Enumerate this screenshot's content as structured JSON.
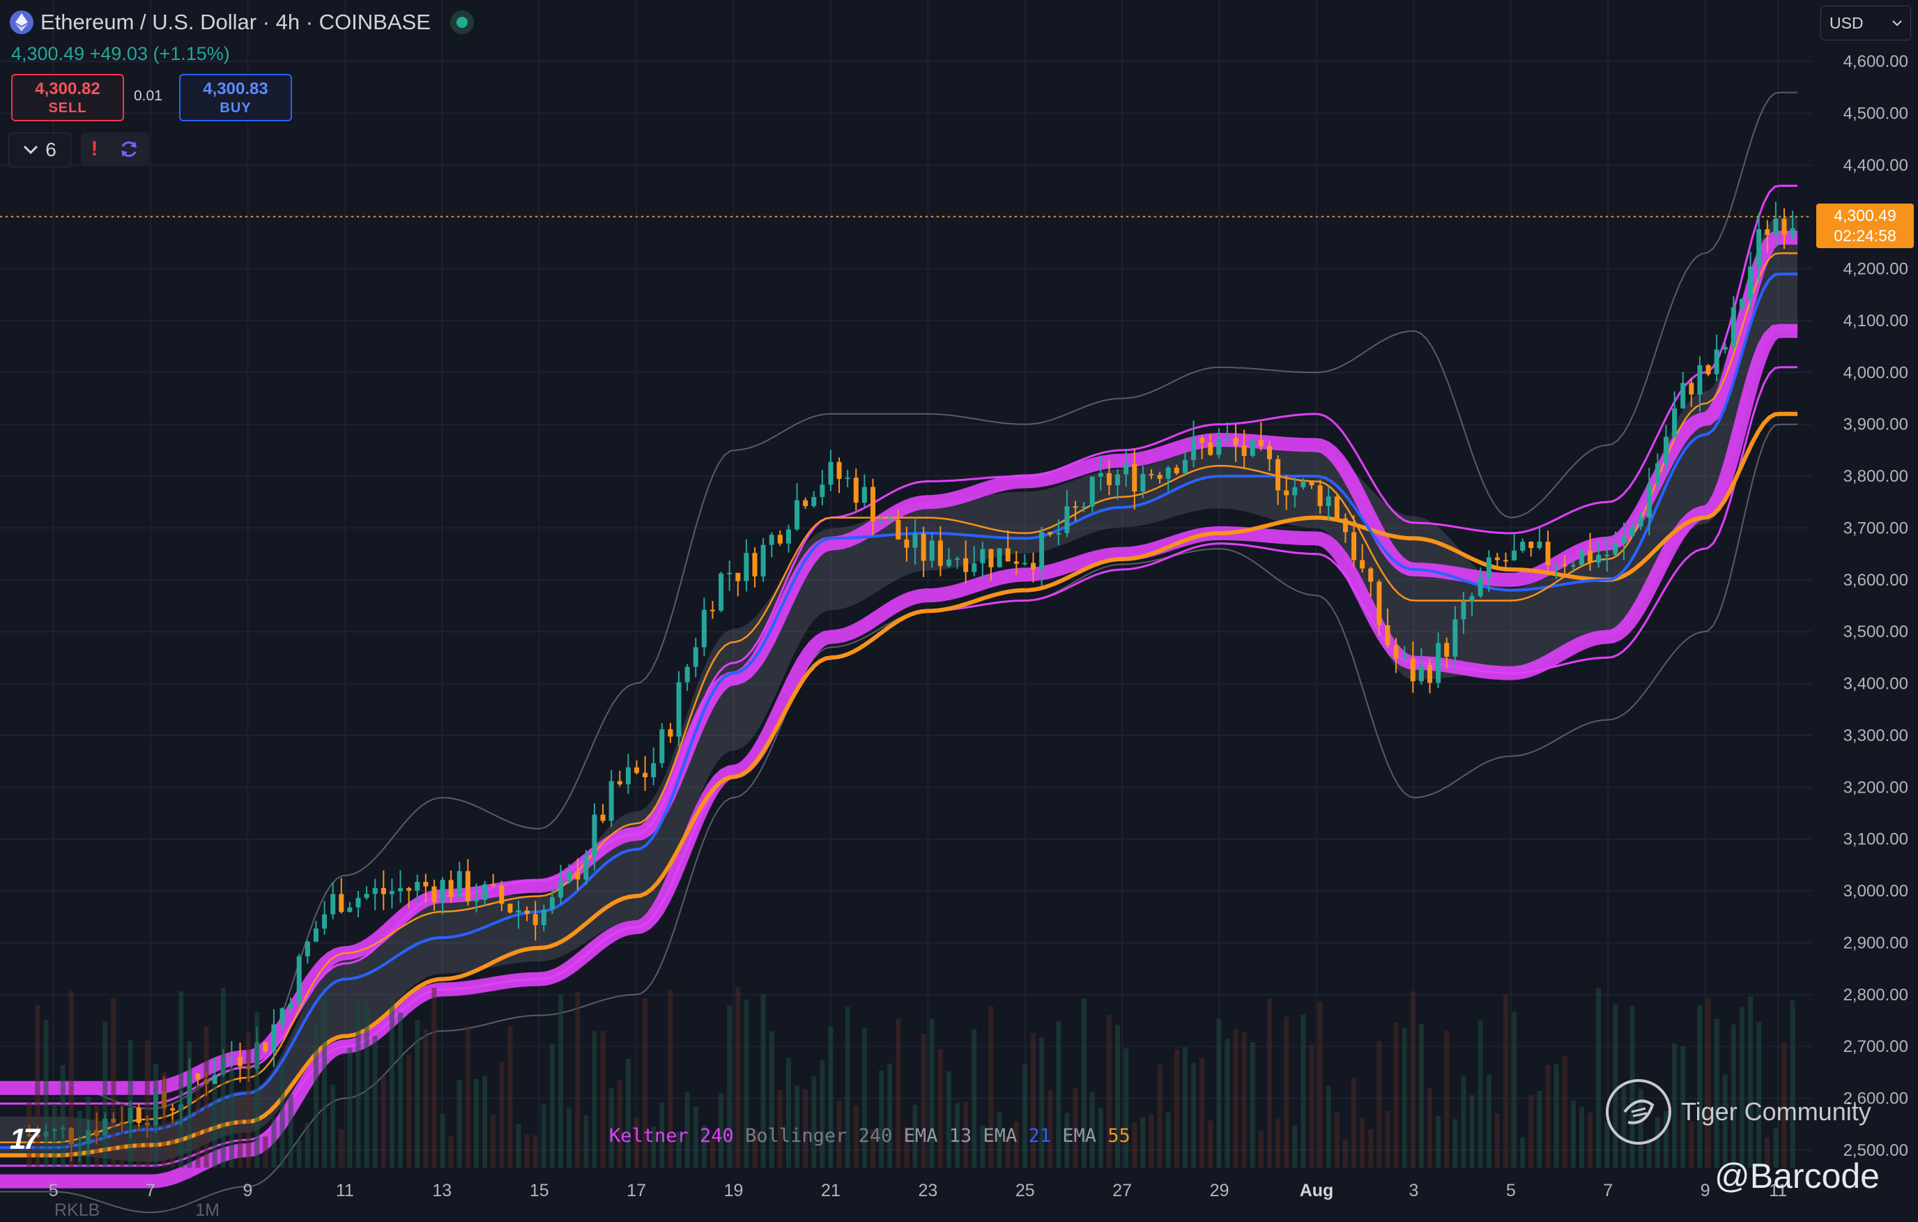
{
  "header": {
    "symbol_title": "Ethereum / U.S. Dollar · 4h · COINBASE",
    "last_price": "4,300.49",
    "change": "+49.03 (+1.15%)"
  },
  "trade_panel": {
    "sell_price": "4,300.82",
    "sell_label": "SELL",
    "spread": "0.01",
    "buy_price": "4,300.83",
    "buy_label": "BUY"
  },
  "toolbar": {
    "indicator_count": "6"
  },
  "currency_selector": "USD",
  "price_tag": {
    "price": "4,300.49",
    "countdown": "02:24:58"
  },
  "indicator_legend": [
    {
      "name": "Keltner",
      "param": "240",
      "name_color": "#e040fb",
      "param_color": "#e040fb"
    },
    {
      "name": "Bollinger",
      "param": "240",
      "name_color": "#787b86",
      "param_color": "#787b86"
    },
    {
      "name": "EMA",
      "param": "13",
      "name_color": "#9598a1",
      "param_color": "#9598a1"
    },
    {
      "name": "EMA",
      "param": "21",
      "name_color": "#9598a1",
      "param_color": "#2962ff"
    },
    {
      "name": "EMA",
      "param": "55",
      "name_color": "#9598a1",
      "param_color": "#f7931a"
    }
  ],
  "watermarks": {
    "tiger": "Tiger Community",
    "handle": "@Barcode"
  },
  "bottom_tabs": [
    "RKLB",
    "1M"
  ],
  "colors": {
    "background": "#131722",
    "grid": "#1e2230",
    "keltner": "#e040fb",
    "bollinger": "#787b86",
    "ema13": "#f7931a",
    "ema21": "#2962ff",
    "ema55": "#f7931a",
    "up_candle": "#26a69a",
    "down_candle": "#f7931a",
    "current_price": "#f7931a"
  },
  "chart_data": {
    "type": "line",
    "title": "Ethereum / U.S. Dollar · 4h · COINBASE",
    "xlabel": "",
    "ylabel": "",
    "ylim": [
      2450,
      4650
    ],
    "y_ticks": [
      "4,600.00",
      "4,500.00",
      "4,400.00",
      "4,300.00",
      "4,200.00",
      "4,100.00",
      "4,000.00",
      "3,900.00",
      "3,800.00",
      "3,700.00",
      "3,600.00",
      "3,500.00",
      "3,400.00",
      "3,300.00",
      "3,200.00",
      "3,100.00",
      "3,000.00",
      "2,900.00",
      "2,800.00",
      "2,700.00",
      "2,600.00",
      "2,500.00"
    ],
    "x_ticks": [
      "5",
      "7",
      "9",
      "11",
      "13",
      "15",
      "17",
      "19",
      "21",
      "23",
      "25",
      "27",
      "29",
      "Aug",
      "3",
      "5",
      "7",
      "9",
      "11"
    ],
    "x": [
      5,
      7,
      9,
      11,
      13,
      15,
      17,
      19,
      21,
      23,
      25,
      27,
      29,
      31,
      33,
      35,
      37,
      39,
      40.5
    ],
    "current_price": 4300.49,
    "grid": true,
    "legend": "bottom-center",
    "series": [
      {
        "name": "Price",
        "values": [
          2530,
          2580,
          2690,
          2990,
          3010,
          2960,
          3220,
          3620,
          3800,
          3650,
          3650,
          3800,
          3860,
          3770,
          3420,
          3640,
          3650,
          4000,
          4300
        ]
      },
      {
        "name": "EMA 13",
        "values": [
          2515,
          2560,
          2640,
          2880,
          2960,
          2990,
          3130,
          3480,
          3720,
          3720,
          3690,
          3760,
          3820,
          3790,
          3560,
          3560,
          3640,
          3940,
          4230
        ]
      },
      {
        "name": "EMA 21",
        "values": [
          2505,
          2540,
          2610,
          2830,
          2910,
          2960,
          3080,
          3420,
          3680,
          3690,
          3680,
          3740,
          3800,
          3800,
          3620,
          3580,
          3600,
          3880,
          4190
        ]
      },
      {
        "name": "EMA 55",
        "values": [
          2490,
          2510,
          2555,
          2720,
          2830,
          2890,
          2990,
          3220,
          3450,
          3540,
          3580,
          3640,
          3690,
          3720,
          3680,
          3620,
          3600,
          3720,
          3920
        ]
      },
      {
        "name": "Keltner 240 Upper",
        "values": [
          2590,
          2590,
          2660,
          2860,
          2990,
          3020,
          3110,
          3440,
          3720,
          3790,
          3800,
          3850,
          3900,
          3920,
          3710,
          3690,
          3750,
          4000,
          4360
        ]
      },
      {
        "name": "Keltner 240 Middle",
        "values": [
          2530,
          2530,
          2590,
          2790,
          2900,
          2920,
          3020,
          3320,
          3580,
          3660,
          3700,
          3740,
          3780,
          3770,
          3530,
          3510,
          3580,
          3820,
          4170
        ]
      },
      {
        "name": "Keltner 240 Lower",
        "values": [
          2470,
          2470,
          2520,
          2700,
          2810,
          2830,
          2930,
          3220,
          3450,
          3540,
          3560,
          3620,
          3670,
          3650,
          3440,
          3420,
          3450,
          3660,
          4010
        ]
      },
      {
        "name": "Bollinger 240 Upper",
        "values": [
          2630,
          2580,
          2660,
          3030,
          3180,
          3120,
          3400,
          3850,
          3920,
          3920,
          3900,
          3950,
          4010,
          4000,
          4080,
          3720,
          3860,
          4230,
          4540
        ]
      },
      {
        "name": "Bollinger 240 Lower",
        "values": [
          2420,
          2380,
          2430,
          2600,
          2730,
          2760,
          2800,
          3180,
          3470,
          3540,
          3560,
          3630,
          3660,
          3570,
          3180,
          3260,
          3330,
          3500,
          3900
        ]
      }
    ]
  }
}
